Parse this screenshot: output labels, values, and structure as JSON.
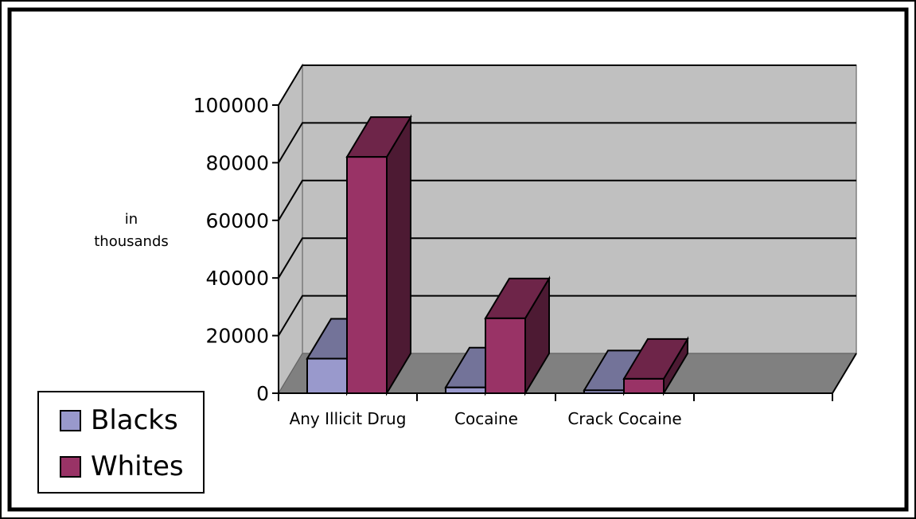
{
  "chart_data": {
    "type": "bar",
    "style": "3d-clustered",
    "categories": [
      "Any Illicit Drug",
      "Cocaine",
      "Crack Cocaine"
    ],
    "series": [
      {
        "name": "Blacks",
        "values": [
          12000,
          2000,
          1000
        ],
        "color": "#9999cc"
      },
      {
        "name": "Whites",
        "values": [
          82000,
          26000,
          5000
        ],
        "color": "#993366"
      }
    ],
    "ylabel_lines": [
      "in",
      "thousands"
    ],
    "yticks": [
      "0",
      "20000",
      "40000",
      "60000",
      "80000",
      "100000"
    ],
    "ylim": [
      0,
      100000
    ],
    "grid": true,
    "legend_position": "bottom-left"
  }
}
